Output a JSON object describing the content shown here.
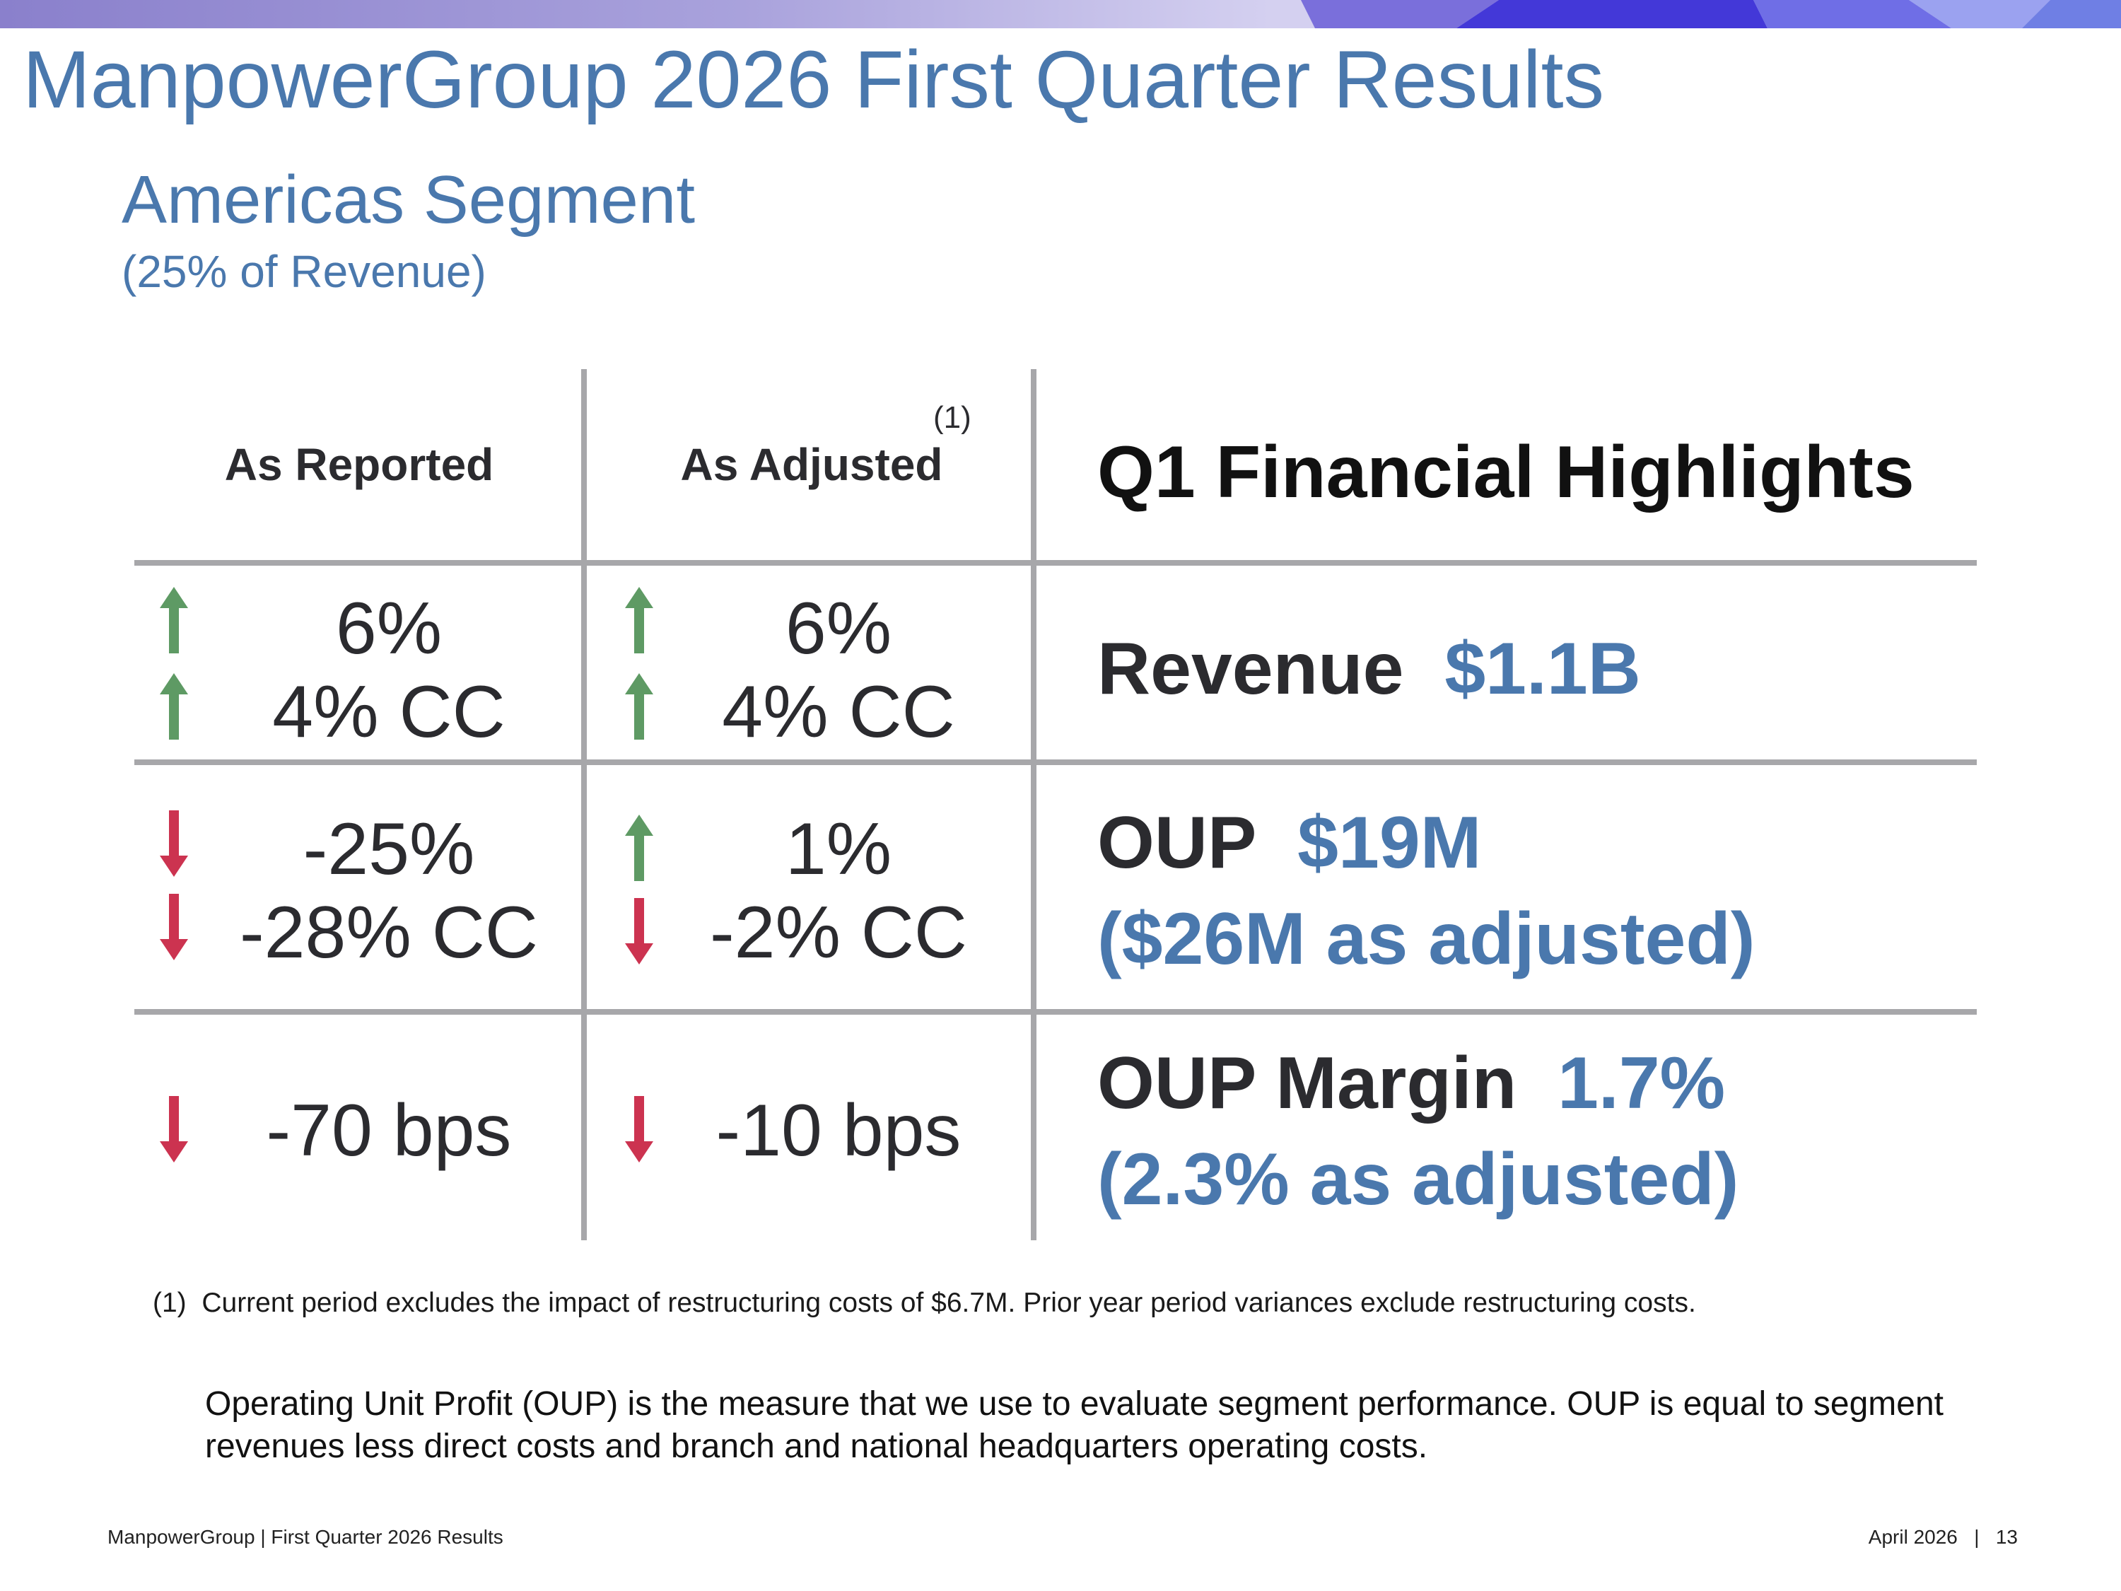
{
  "header": {
    "title": "ManpowerGroup 2026 First Quarter Results",
    "segment_title": "Americas Segment",
    "segment_subtitle": "(25% of Revenue)"
  },
  "table": {
    "columns": {
      "reported": "As Reported",
      "adjusted": "As Adjusted",
      "adjusted_ref": "(1)",
      "highlights": "Q1 Financial Highlights"
    },
    "rows": [
      {
        "reported": [
          {
            "value": "6%",
            "direction": "up"
          },
          {
            "value": "4% CC",
            "direction": "up"
          }
        ],
        "adjusted": [
          {
            "value": "6%",
            "direction": "up"
          },
          {
            "value": "4% CC",
            "direction": "up"
          }
        ],
        "highlight": {
          "label": "Revenue",
          "value": "$1.1B"
        }
      },
      {
        "reported": [
          {
            "value": "-25%",
            "direction": "down"
          },
          {
            "value": "-28% CC",
            "direction": "down"
          }
        ],
        "adjusted": [
          {
            "value": "1%",
            "direction": "up"
          },
          {
            "value": "-2% CC",
            "direction": "down"
          }
        ],
        "highlight": {
          "label": "OUP",
          "value": "$19M",
          "adjusted_line": "($26M as adjusted)"
        }
      },
      {
        "reported": [
          {
            "value": "-70 bps",
            "direction": "down"
          }
        ],
        "adjusted": [
          {
            "value": "-10 bps",
            "direction": "down"
          }
        ],
        "highlight": {
          "label": "OUP Margin",
          "value": "1.7%",
          "adjusted_line": "(2.3% as adjusted)"
        }
      }
    ]
  },
  "footnote": {
    "marker": "(1)",
    "text": "Current period excludes the impact of restructuring costs of $6.7M. Prior year period variances exclude restructuring costs."
  },
  "oup_note": "Operating Unit Profit (OUP) is the measure that we use to evaluate segment performance.  OUP is equal to segment revenues less direct costs and branch and national headquarters operating costs.",
  "footer": {
    "left": "ManpowerGroup  |  First Quarter 2026 Results",
    "date": "April 2026",
    "separator": "|",
    "page": "13"
  },
  "colors": {
    "accent_blue": "#4a78ad",
    "up_green": "#5e9a64",
    "down_red": "#cc3350",
    "grid_gray": "#a7a7aa"
  }
}
